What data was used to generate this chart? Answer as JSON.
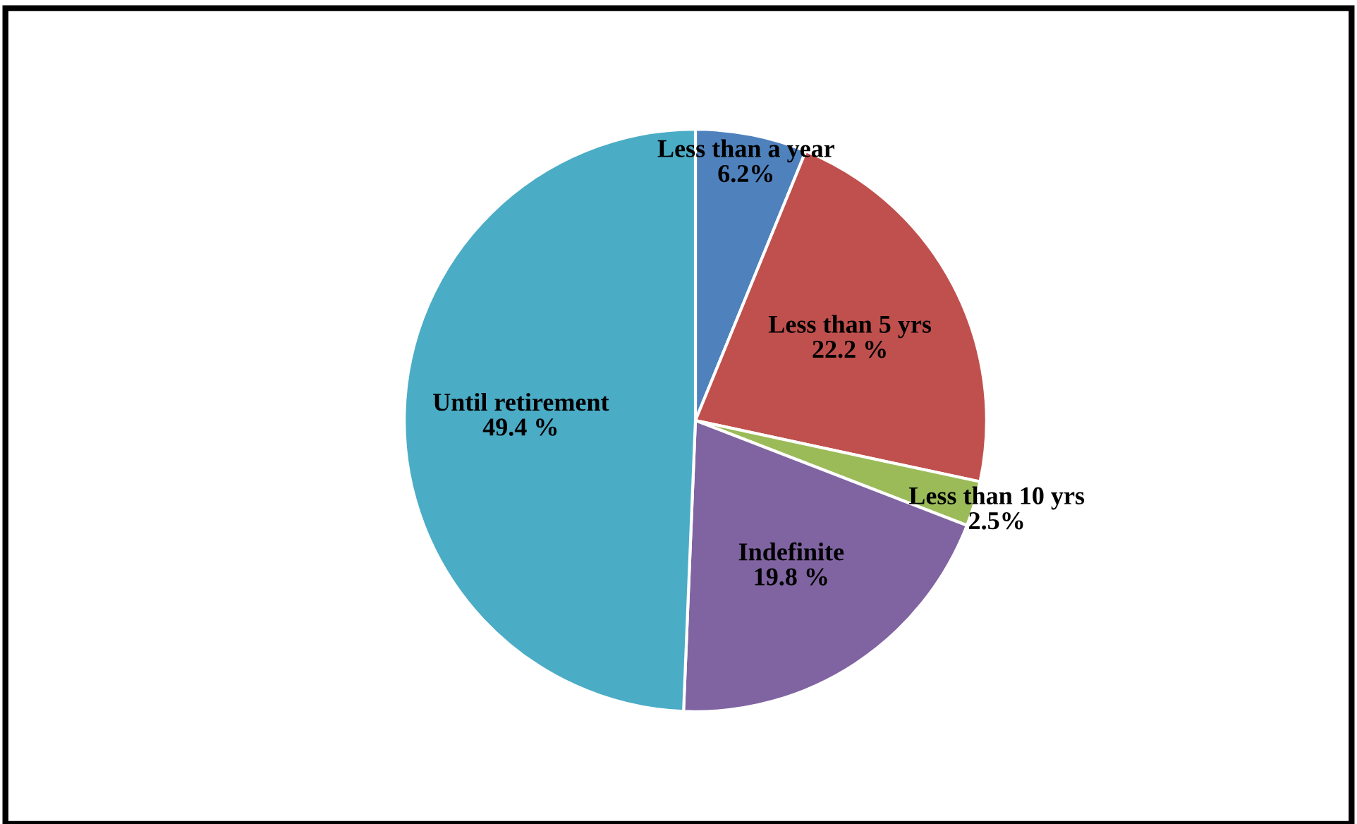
{
  "chart_data": {
    "type": "pie",
    "categories": [
      "Less than a year",
      "Less than 5 yrs",
      "Less than 10 yrs",
      "Indefinite",
      "Until retirement"
    ],
    "values": [
      6.2,
      22.2,
      2.5,
      19.8,
      49.4
    ],
    "value_labels": [
      "6.2%",
      "22.2 %",
      "2.5%",
      "19.8 %",
      "49.4 %"
    ],
    "colors": [
      "#4f81bd",
      "#c0504d",
      "#9bbb59",
      "#8064a2",
      "#4bacc6"
    ],
    "legend": false
  }
}
